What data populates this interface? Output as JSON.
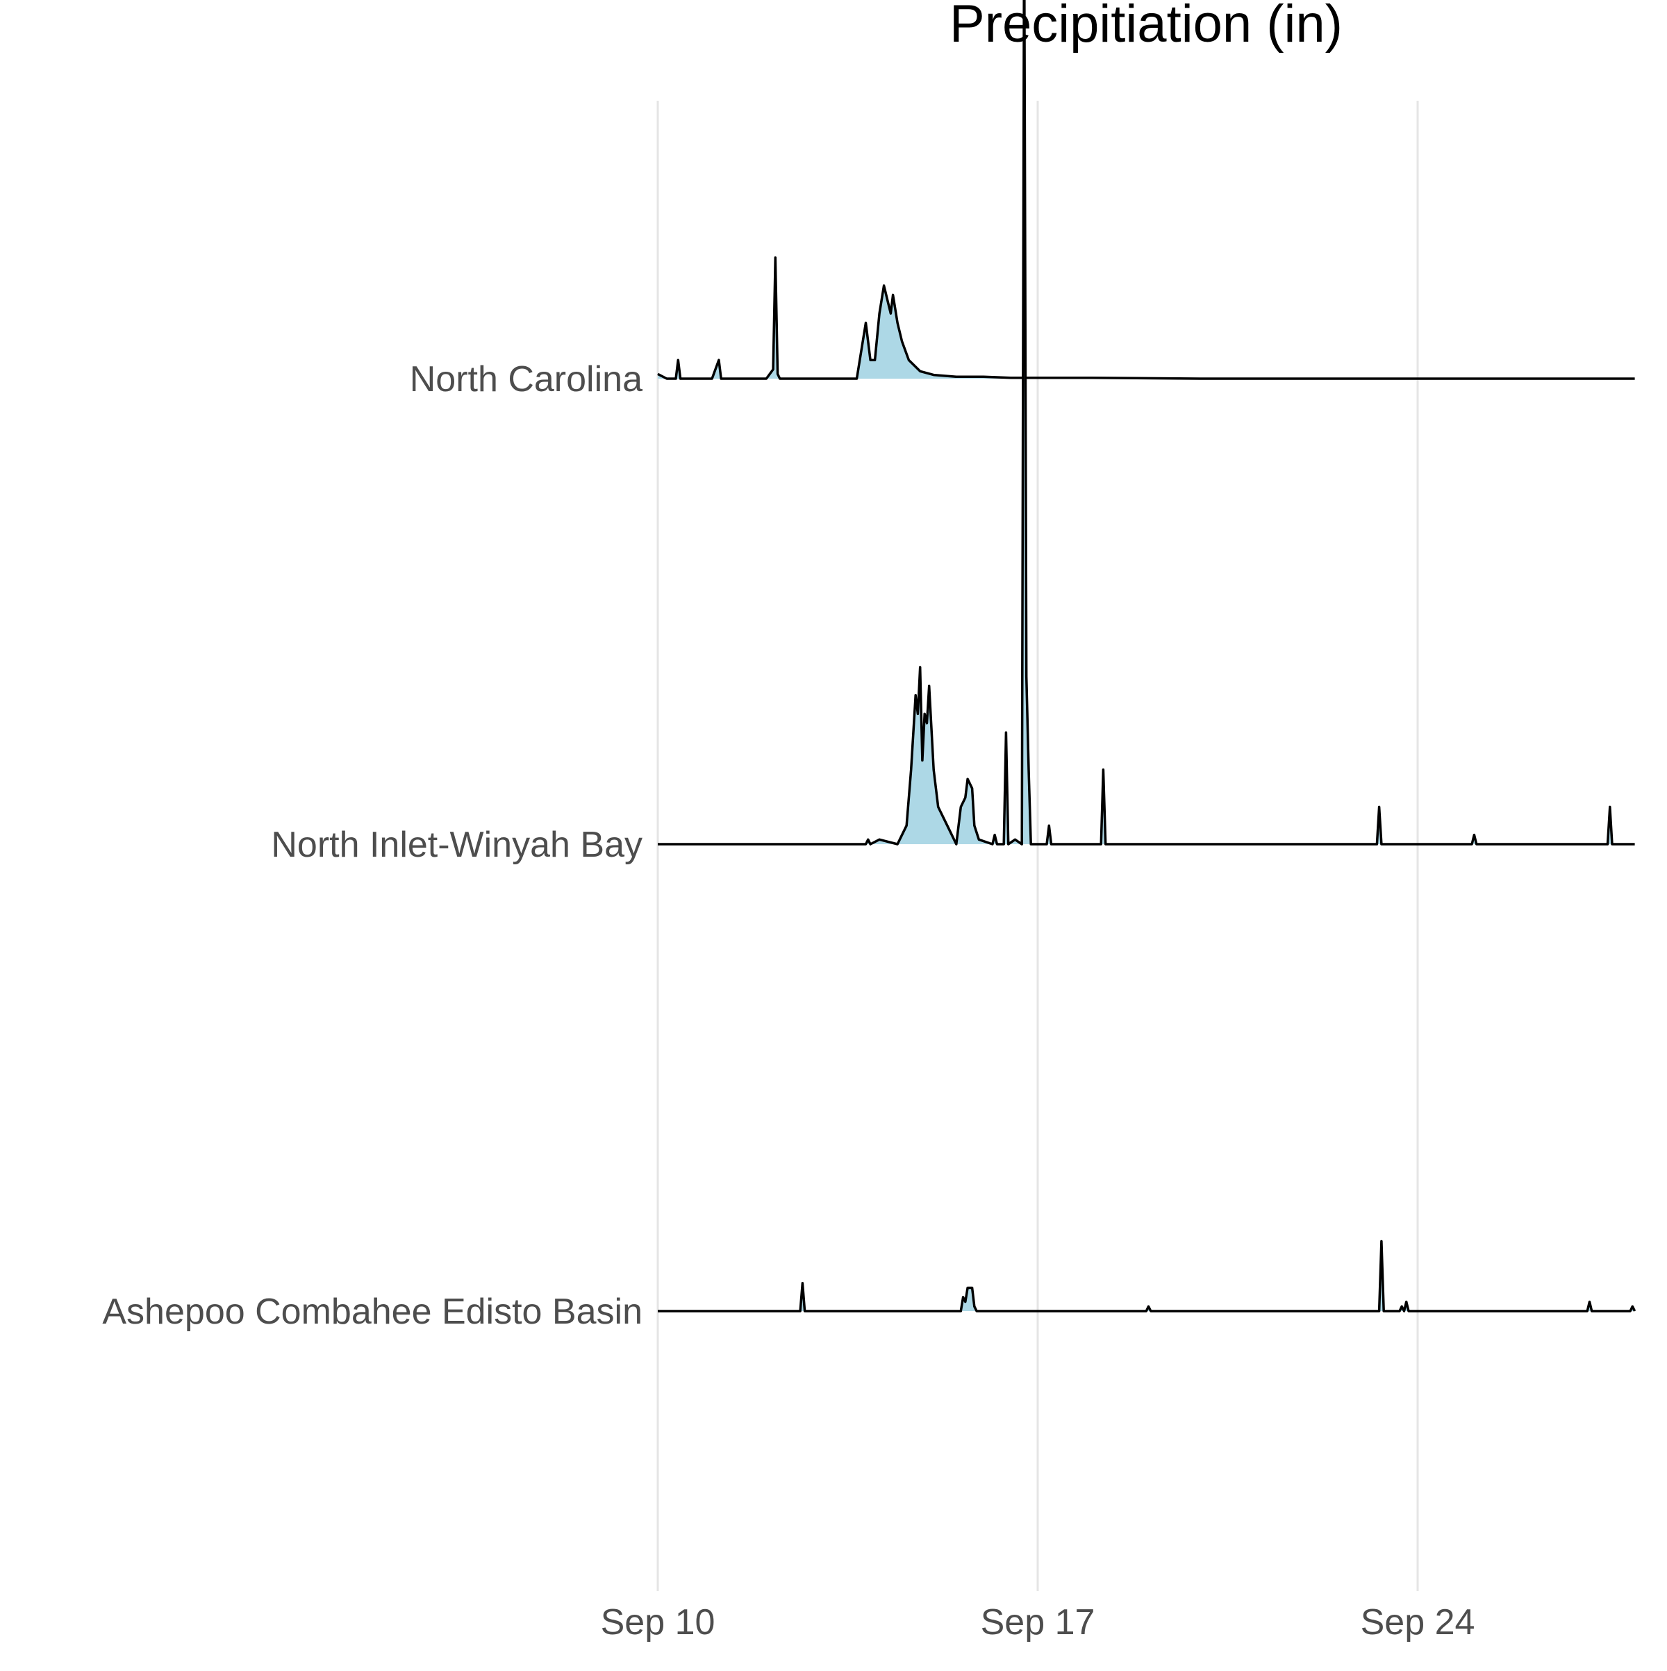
{
  "chart_data": {
    "type": "area",
    "subtype": "ridgeline",
    "title": "Precipitiation (in)",
    "xlabel": "",
    "ylabel": "",
    "x_axis": {
      "type": "date",
      "range": [
        "2018-09-10",
        "2018-09-28"
      ],
      "ticks": [
        "2018-09-10",
        "2018-09-17",
        "2018-09-24"
      ],
      "tick_labels": [
        "Sep 10",
        "Sep 17",
        "Sep 24"
      ]
    },
    "grid": {
      "vertical": true,
      "horizontal": false
    },
    "fill_color": "#add8e6",
    "line_color": "#000000",
    "ridge_scale_in": 0.5,
    "series": [
      {
        "label": "North Carolina",
        "points": [
          [
            "2018-09-10 00:00",
            0.005
          ],
          [
            "2018-09-10 04:00",
            0.0
          ],
          [
            "2018-09-10 08:00",
            0.0
          ],
          [
            "2018-09-10 09:00",
            0.02
          ],
          [
            "2018-09-10 10:00",
            0.0
          ],
          [
            "2018-09-11 00:00",
            0.0
          ],
          [
            "2018-09-11 03:00",
            0.02
          ],
          [
            "2018-09-11 04:00",
            0.0
          ],
          [
            "2018-09-12 00:00",
            0.0
          ],
          [
            "2018-09-12 03:00",
            0.01
          ],
          [
            "2018-09-12 04:00",
            0.13
          ],
          [
            "2018-09-12 05:00",
            0.005
          ],
          [
            "2018-09-12 06:00",
            0.0
          ],
          [
            "2018-09-13 16:00",
            0.0
          ],
          [
            "2018-09-13 20:00",
            0.06
          ],
          [
            "2018-09-13 22:00",
            0.02
          ],
          [
            "2018-09-14 00:00",
            0.02
          ],
          [
            "2018-09-14 02:00",
            0.07
          ],
          [
            "2018-09-14 04:00",
            0.1
          ],
          [
            "2018-09-14 06:00",
            0.08
          ],
          [
            "2018-09-14 07:00",
            0.07
          ],
          [
            "2018-09-14 08:00",
            0.09
          ],
          [
            "2018-09-14 10:00",
            0.06
          ],
          [
            "2018-09-14 12:00",
            0.04
          ],
          [
            "2018-09-14 15:00",
            0.02
          ],
          [
            "2018-09-14 20:00",
            0.008
          ],
          [
            "2018-09-15 02:00",
            0.004
          ],
          [
            "2018-09-15 12:00",
            0.002
          ],
          [
            "2018-09-16 00:00",
            0.002
          ],
          [
            "2018-09-16 12:00",
            0.001
          ],
          [
            "2018-09-17 00:00",
            0.001
          ],
          [
            "2018-09-18 00:00",
            0.001
          ],
          [
            "2018-09-20 00:00",
            0.0
          ],
          [
            "2018-09-22 00:00",
            0.0
          ],
          [
            "2018-09-24 00:00",
            0.0
          ],
          [
            "2018-09-26 00:00",
            0.0
          ],
          [
            "2018-09-28 00:00",
            0.0
          ]
        ]
      },
      {
        "label": "North Inlet-Winyah Bay",
        "points": [
          [
            "2018-09-10 00:00",
            0.0
          ],
          [
            "2018-09-11 08:00",
            0.0
          ],
          [
            "2018-09-12 00:00",
            0.0
          ],
          [
            "2018-09-13 20:00",
            0.0
          ],
          [
            "2018-09-13 21:00",
            0.005
          ],
          [
            "2018-09-13 22:00",
            0.0
          ],
          [
            "2018-09-14 02:00",
            0.005
          ],
          [
            "2018-09-14 10:00",
            0.0
          ],
          [
            "2018-09-14 14:00",
            0.02
          ],
          [
            "2018-09-14 16:00",
            0.08
          ],
          [
            "2018-09-14 18:00",
            0.16
          ],
          [
            "2018-09-14 19:00",
            0.14
          ],
          [
            "2018-09-14 20:00",
            0.19
          ],
          [
            "2018-09-14 21:00",
            0.09
          ],
          [
            "2018-09-14 22:00",
            0.14
          ],
          [
            "2018-09-14 23:00",
            0.13
          ],
          [
            "2018-09-15 00:00",
            0.17
          ],
          [
            "2018-09-15 02:00",
            0.08
          ],
          [
            "2018-09-15 04:00",
            0.04
          ],
          [
            "2018-09-15 08:00",
            0.02
          ],
          [
            "2018-09-15 12:00",
            0.0
          ],
          [
            "2018-09-15 14:00",
            0.04
          ],
          [
            "2018-09-15 16:00",
            0.05
          ],
          [
            "2018-09-15 17:00",
            0.07
          ],
          [
            "2018-09-15 19:00",
            0.06
          ],
          [
            "2018-09-15 20:00",
            0.02
          ],
          [
            "2018-09-15 22:00",
            0.005
          ],
          [
            "2018-09-16 04:00",
            0.0
          ],
          [
            "2018-09-16 05:00",
            0.01
          ],
          [
            "2018-09-16 06:00",
            0.0
          ],
          [
            "2018-09-16 09:00",
            0.0
          ],
          [
            "2018-09-16 10:00",
            0.12
          ],
          [
            "2018-09-16 11:00",
            0.0
          ],
          [
            "2018-09-16 14:00",
            0.005
          ],
          [
            "2018-09-16 17:00",
            0.0
          ],
          [
            "2018-09-16 18:00",
            1.0
          ],
          [
            "2018-09-16 19:00",
            0.18
          ],
          [
            "2018-09-16 20:00",
            0.08
          ],
          [
            "2018-09-16 21:00",
            0.0
          ],
          [
            "2018-09-17 04:00",
            0.0
          ],
          [
            "2018-09-17 05:00",
            0.02
          ],
          [
            "2018-09-17 06:00",
            0.0
          ],
          [
            "2018-09-18 04:00",
            0.0
          ],
          [
            "2018-09-18 05:00",
            0.08
          ],
          [
            "2018-09-18 06:00",
            0.0
          ],
          [
            "2018-09-23 06:00",
            0.0
          ],
          [
            "2018-09-23 07:00",
            0.04
          ],
          [
            "2018-09-23 08:00",
            0.0
          ],
          [
            "2018-09-25 00:00",
            0.0
          ],
          [
            "2018-09-25 01:00",
            0.01
          ],
          [
            "2018-09-25 02:00",
            0.0
          ],
          [
            "2018-09-27 12:00",
            0.0
          ],
          [
            "2018-09-27 13:00",
            0.04
          ],
          [
            "2018-09-27 14:00",
            0.0
          ],
          [
            "2018-09-28 00:00",
            0.0
          ]
        ]
      },
      {
        "label": "Ashepoo Combahee Edisto Basin",
        "points": [
          [
            "2018-09-10 00:00",
            0.0
          ],
          [
            "2018-09-12 15:00",
            0.0
          ],
          [
            "2018-09-12 16:00",
            0.03
          ],
          [
            "2018-09-12 17:00",
            0.0
          ],
          [
            "2018-09-15 14:00",
            0.0
          ],
          [
            "2018-09-15 15:00",
            0.015
          ],
          [
            "2018-09-15 16:00",
            0.01
          ],
          [
            "2018-09-15 17:00",
            0.025
          ],
          [
            "2018-09-15 19:00",
            0.025
          ],
          [
            "2018-09-15 20:00",
            0.005
          ],
          [
            "2018-09-15 21:00",
            0.0
          ],
          [
            "2018-09-19 00:00",
            0.0
          ],
          [
            "2018-09-19 01:00",
            0.005
          ],
          [
            "2018-09-19 02:00",
            0.0
          ],
          [
            "2018-09-23 07:00",
            0.0
          ],
          [
            "2018-09-23 08:00",
            0.075
          ],
          [
            "2018-09-23 09:00",
            0.0
          ],
          [
            "2018-09-23 16:00",
            0.0
          ],
          [
            "2018-09-23 17:00",
            0.005
          ],
          [
            "2018-09-23 18:00",
            0.0
          ],
          [
            "2018-09-23 19:00",
            0.01
          ],
          [
            "2018-09-23 20:00",
            0.0
          ],
          [
            "2018-09-27 03:00",
            0.0
          ],
          [
            "2018-09-27 04:00",
            0.01
          ],
          [
            "2018-09-27 05:00",
            0.0
          ],
          [
            "2018-09-27 22:00",
            0.0
          ],
          [
            "2018-09-27 23:00",
            0.005
          ],
          [
            "2018-09-28 00:00",
            0.0
          ]
        ]
      }
    ]
  }
}
